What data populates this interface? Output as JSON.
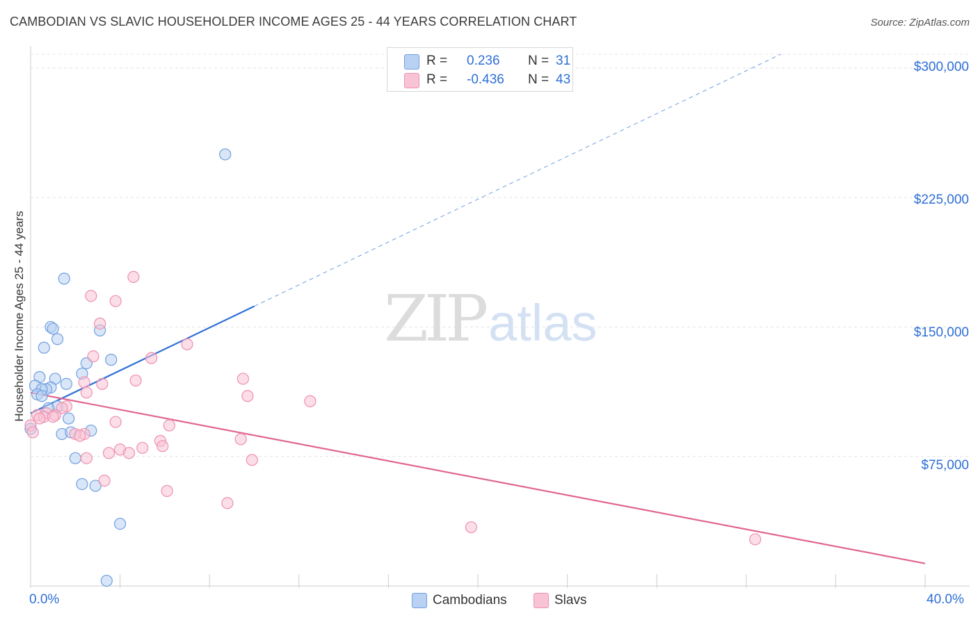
{
  "header": {
    "title": "CAMBODIAN VS SLAVIC HOUSEHOLDER INCOME AGES 25 - 44 YEARS CORRELATION CHART",
    "source": "Source: ZipAtlas.com"
  },
  "watermark": {
    "part1": "ZIP",
    "part2": "atlas"
  },
  "legend": {
    "rows": [
      {
        "r_label": "R =",
        "r_value": "0.236",
        "n_label": "N =",
        "n_value": "31",
        "color": "#b9d2f3",
        "stroke": "#6f9ee0"
      },
      {
        "r_label": "R =",
        "r_value": "-0.436",
        "n_label": "N =",
        "n_value": "43",
        "color": "#f8c3d4",
        "stroke": "#ee8fb0"
      }
    ]
  },
  "bottom_legend": [
    {
      "label": "Cambodians",
      "color": "#b9d2f3",
      "stroke": "#6f9ee0"
    },
    {
      "label": "Slavs",
      "color": "#f8c3d4",
      "stroke": "#ee8fb0"
    }
  ],
  "axes": {
    "ylabel": "Householder Income Ages 25 - 44 years",
    "x_min_label": "0.0%",
    "x_max_label": "40.0%",
    "y_tick_labels": [
      "$300,000",
      "$225,000",
      "$150,000",
      "$75,000"
    ]
  },
  "chart_data": {
    "type": "scatter",
    "title": "CAMBODIAN VS SLAVIC HOUSEHOLDER INCOME AGES 25 - 44 YEARS CORRELATION CHART",
    "xlabel": "",
    "ylabel": "Householder Income Ages 25 - 44 years",
    "xlim": [
      0,
      40
    ],
    "ylim": [
      0,
      308000
    ],
    "y_ticks": [
      75000,
      150000,
      225000,
      300000
    ],
    "series": [
      {
        "name": "Cambodians",
        "color": "#6f9ee0",
        "fill": "#b9d2f3",
        "R": 0.236,
        "N": 31,
        "points": [
          [
            8.7,
            250000
          ],
          [
            1.5,
            178000
          ],
          [
            0.9,
            150000
          ],
          [
            1.0,
            149000
          ],
          [
            3.1,
            148000
          ],
          [
            1.2,
            143000
          ],
          [
            0.6,
            138000
          ],
          [
            3.6,
            131000
          ],
          [
            2.5,
            129000
          ],
          [
            2.3,
            123000
          ],
          [
            0.4,
            121000
          ],
          [
            1.1,
            120000
          ],
          [
            1.6,
            117000
          ],
          [
            0.2,
            116000
          ],
          [
            0.9,
            115000
          ],
          [
            0.7,
            114000
          ],
          [
            0.5,
            114000
          ],
          [
            0.3,
            111000
          ],
          [
            1.2,
            104000
          ],
          [
            0.8,
            103000
          ],
          [
            0.0,
            91000
          ],
          [
            1.7,
            97000
          ],
          [
            2.7,
            90000
          ],
          [
            1.4,
            88000
          ],
          [
            1.8,
            89000
          ],
          [
            2.0,
            74000
          ],
          [
            2.3,
            59000
          ],
          [
            2.9,
            58000
          ],
          [
            4.0,
            36000
          ],
          [
            3.4,
            3000
          ],
          [
            0.5,
            110000
          ]
        ],
        "trend": {
          "x": [
            0,
            10
          ],
          "y": [
            100000,
            162000
          ],
          "extended": {
            "x": [
              10,
              40
            ],
            "y": [
              162000,
              348000
            ],
            "dashed": true
          }
        }
      },
      {
        "name": "Slavs",
        "color": "#ee8fb0",
        "fill": "#f8c3d4",
        "R": -0.436,
        "N": 43,
        "points": [
          [
            4.6,
            179000
          ],
          [
            2.7,
            168000
          ],
          [
            3.8,
            165000
          ],
          [
            3.1,
            152000
          ],
          [
            7.0,
            140000
          ],
          [
            2.8,
            133000
          ],
          [
            5.4,
            132000
          ],
          [
            9.5,
            120000
          ],
          [
            4.7,
            119000
          ],
          [
            3.2,
            117000
          ],
          [
            2.4,
            118000
          ],
          [
            2.5,
            112000
          ],
          [
            9.7,
            110000
          ],
          [
            12.5,
            107000
          ],
          [
            1.6,
            104000
          ],
          [
            1.4,
            103000
          ],
          [
            0.7,
            100000
          ],
          [
            1.1,
            99000
          ],
          [
            0.3,
            99000
          ],
          [
            0.6,
            98000
          ],
          [
            1.0,
            98000
          ],
          [
            0.4,
            97000
          ],
          [
            0.0,
            93000
          ],
          [
            3.8,
            95000
          ],
          [
            6.2,
            93000
          ],
          [
            2.4,
            88000
          ],
          [
            2.0,
            88000
          ],
          [
            2.2,
            87000
          ],
          [
            9.4,
            85000
          ],
          [
            5.8,
            84000
          ],
          [
            5.9,
            81000
          ],
          [
            5.0,
            80000
          ],
          [
            4.0,
            79000
          ],
          [
            3.5,
            77000
          ],
          [
            4.4,
            77000
          ],
          [
            2.5,
            74000
          ],
          [
            9.9,
            73000
          ],
          [
            3.3,
            61000
          ],
          [
            6.1,
            55000
          ],
          [
            8.8,
            48000
          ],
          [
            19.7,
            34000
          ],
          [
            32.4,
            27000
          ],
          [
            0.1,
            89000
          ]
        ],
        "trend": {
          "x": [
            0,
            40
          ],
          "y": [
            112000,
            13000
          ]
        }
      }
    ]
  }
}
